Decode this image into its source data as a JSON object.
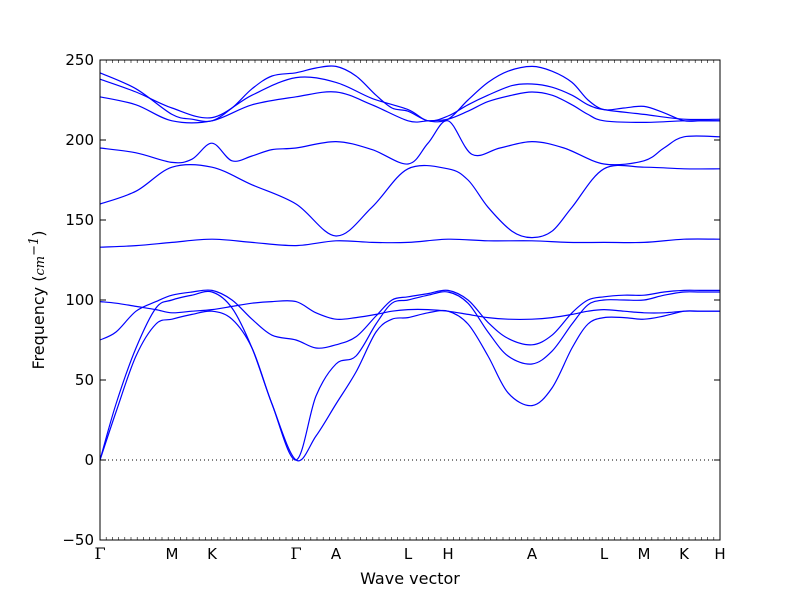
{
  "chart_data": {
    "type": "line",
    "title": "",
    "xlabel": "Wave vector",
    "ylabel": "Frequency (",
    "ylabel_unit": "cm",
    "ylabel_unit_exp": "−1",
    "ylabel_close": ")",
    "ylim": [
      -50,
      250
    ],
    "yticks": [
      -50,
      0,
      50,
      100,
      150,
      200,
      250
    ],
    "xlim": [
      0,
      15.5
    ],
    "high_symmetry_points": [
      {
        "label": "Γ",
        "x": 0
      },
      {
        "label": "M",
        "x": 1.8
      },
      {
        "label": "K",
        "x": 2.8
      },
      {
        "label": "Γ",
        "x": 4.9
      },
      {
        "label": "A",
        "x": 5.9
      },
      {
        "label": "L",
        "x": 7.7
      },
      {
        "label": "H",
        "x": 8.7
      },
      {
        "label": "A",
        "x": 10.8
      },
      {
        "label": "L",
        "x": 12.6
      },
      {
        "label": "M",
        "x": 13.6
      },
      {
        "label": "K",
        "x": 14.6
      },
      {
        "label": "H",
        "x": 15.5
      }
    ],
    "zero_line": 0,
    "line_color": "#0000ff",
    "series": [
      {
        "x": [
          0,
          0.4,
          0.9,
          1.4,
          1.8,
          2.3,
          2.8,
          3.3,
          3.8,
          4.3,
          4.9,
          5.4,
          5.9,
          6.4,
          6.9,
          7.3,
          7.7,
          8.2,
          8.7,
          9.2,
          9.7,
          10.2,
          10.8,
          11.3,
          11.8,
          12.2,
          12.6,
          13.1,
          13.6,
          14.1,
          14.6,
          15.0,
          15.5
        ],
        "values": [
          0,
          30,
          65,
          85,
          88,
          91,
          93,
          88,
          70,
          35,
          0,
          15,
          35,
          55,
          80,
          88,
          89,
          92,
          93,
          85,
          65,
          42,
          34,
          45,
          70,
          85,
          89,
          89,
          88,
          90,
          93,
          93,
          93
        ]
      },
      {
        "x": [
          0,
          0.4,
          0.9,
          1.4,
          1.8,
          2.3,
          2.8,
          3.3,
          3.8,
          4.3,
          4.9,
          5.4,
          5.9,
          6.4,
          6.9,
          7.3,
          7.7,
          8.2,
          8.7,
          9.2,
          9.7,
          10.2,
          10.8,
          11.3,
          11.8,
          12.2,
          12.6,
          13.1,
          13.6,
          14.1,
          14.6,
          15.0,
          15.5
        ],
        "values": [
          0,
          35,
          70,
          95,
          100,
          103,
          105,
          95,
          70,
          35,
          0,
          40,
          60,
          65,
          85,
          98,
          100,
          103,
          105,
          98,
          80,
          65,
          60,
          68,
          85,
          97,
          100,
          100,
          100,
          103,
          105,
          105,
          105
        ]
      },
      {
        "x": [
          0,
          0.4,
          0.9,
          1.4,
          1.8,
          2.3,
          2.8,
          3.3,
          3.8,
          4.3,
          4.9,
          5.4,
          5.9,
          6.4,
          6.9,
          7.3,
          7.7,
          8.2,
          8.7,
          9.2,
          9.7,
          10.2,
          10.8,
          11.3,
          11.8,
          12.2,
          12.6,
          13.1,
          13.6,
          14.1,
          14.6,
          15.0,
          15.5
        ],
        "values": [
          75,
          80,
          93,
          99,
          103,
          105,
          106,
          100,
          88,
          78,
          75,
          70,
          72,
          77,
          90,
          100,
          102,
          104,
          106,
          100,
          86,
          76,
          72,
          78,
          92,
          100,
          102,
          103,
          103,
          105,
          106,
          106,
          106
        ]
      },
      {
        "x": [
          0,
          0.4,
          0.9,
          1.4,
          1.8,
          2.3,
          2.8,
          3.3,
          3.8,
          4.3,
          4.9,
          5.4,
          5.9,
          6.4,
          6.9,
          7.3,
          7.7,
          8.2,
          8.7,
          9.2,
          9.7,
          10.2,
          10.8,
          11.3,
          11.8,
          12.2,
          12.6,
          13.1,
          13.6,
          14.1,
          14.6,
          15.0,
          15.5
        ],
        "values": [
          99,
          98,
          96,
          94,
          92,
          93,
          94,
          96,
          98,
          99,
          99,
          92,
          88,
          89,
          91,
          93,
          94,
          94,
          93,
          91,
          89,
          88,
          88,
          89,
          91,
          93,
          94,
          93,
          92,
          92,
          93,
          93,
          93
        ]
      },
      {
        "x": [
          0,
          0.9,
          1.8,
          2.8,
          3.8,
          4.9,
          5.9,
          6.8,
          7.7,
          8.7,
          9.7,
          10.8,
          11.7,
          12.6,
          13.6,
          14.6,
          15.5
        ],
        "values": [
          133,
          134,
          136,
          138,
          136,
          134,
          137,
          136,
          136,
          138,
          137,
          137,
          136,
          136,
          136,
          138,
          138
        ]
      },
      {
        "x": [
          0,
          0.9,
          1.8,
          2.8,
          3.8,
          4.9,
          5.9,
          6.8,
          7.7,
          8.7,
          9.2,
          9.7,
          10.3,
          10.8,
          11.3,
          11.8,
          12.6,
          13.6,
          14.6,
          15.5
        ],
        "values": [
          160,
          168,
          183,
          183,
          172,
          160,
          140,
          158,
          182,
          182,
          175,
          158,
          143,
          139,
          143,
          158,
          182,
          183,
          182,
          182
        ]
      },
      {
        "x": [
          0,
          0.9,
          1.8,
          2.3,
          2.8,
          3.3,
          3.8,
          4.3,
          4.9,
          5.9,
          6.8,
          7.7,
          8.2,
          8.7,
          9.3,
          10.0,
          10.8,
          11.6,
          12.6,
          13.6,
          14.1,
          14.6,
          15.5
        ],
        "values": [
          195,
          192,
          186,
          188,
          198,
          187,
          190,
          194,
          195,
          199,
          194,
          185,
          198,
          212,
          191,
          195,
          199,
          195,
          185,
          187,
          195,
          202,
          202
        ]
      },
      {
        "x": [
          0,
          0.9,
          1.8,
          2.8,
          3.8,
          4.9,
          5.9,
          6.8,
          7.7,
          8.2,
          8.7,
          9.2,
          9.7,
          10.3,
          10.8,
          11.3,
          11.8,
          12.2,
          12.6,
          13.6,
          14.6,
          15.5
        ],
        "values": [
          227,
          222,
          212,
          212,
          222,
          227,
          230,
          222,
          212,
          212,
          213,
          218,
          224,
          228,
          230,
          228,
          222,
          216,
          212,
          211,
          212,
          212
        ]
      },
      {
        "x": [
          0,
          0.9,
          1.8,
          2.8,
          3.8,
          4.9,
          5.9,
          6.8,
          7.7,
          8.2,
          8.7,
          9.2,
          9.7,
          10.3,
          10.8,
          11.3,
          11.8,
          12.2,
          12.6,
          13.6,
          14.6,
          15.5
        ],
        "values": [
          238,
          230,
          220,
          214,
          228,
          239,
          236,
          226,
          219,
          212,
          215,
          222,
          228,
          234,
          235,
          233,
          228,
          222,
          219,
          216,
          213,
          213
        ]
      },
      {
        "x": [
          0,
          0.9,
          1.8,
          2.3,
          2.8,
          3.3,
          3.8,
          4.3,
          4.9,
          5.4,
          5.9,
          6.4,
          6.9,
          7.3,
          7.7,
          8.2,
          8.7,
          9.2,
          9.7,
          10.2,
          10.8,
          11.3,
          11.8,
          12.2,
          12.6,
          13.1,
          13.6,
          14.1,
          14.6,
          15.0,
          15.5
        ],
        "values": [
          242,
          232,
          216,
          213,
          212,
          220,
          232,
          240,
          242,
          245,
          246,
          240,
          228,
          220,
          218,
          212,
          213,
          225,
          236,
          243,
          246,
          243,
          236,
          225,
          219,
          220,
          221,
          217,
          212,
          212,
          212
        ]
      }
    ]
  }
}
